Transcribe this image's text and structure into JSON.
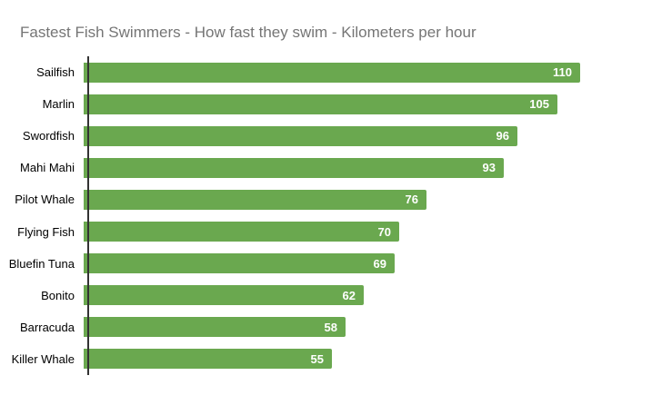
{
  "chart_data": {
    "type": "bar",
    "orientation": "horizontal",
    "title": "Fastest Fish Swimmers - How fast they swim - Kilometers per hour",
    "categories": [
      "Sailfish",
      "Marlin",
      "Swordfish",
      "Mahi Mahi",
      "Pilot Whale",
      "Flying Fish",
      "Bluefin Tuna",
      "Bonito",
      "Barracuda",
      "Killer Whale"
    ],
    "values": [
      110,
      105,
      96,
      93,
      76,
      70,
      69,
      62,
      58,
      55
    ],
    "value_labels_shown": true,
    "xlabel": "",
    "ylabel": "",
    "legend": "none",
    "grid": false,
    "axis_tick_labels_shown": false,
    "colors": {
      "bar": "#6aa84f",
      "value_label": "#ffffff",
      "category_label": "#000000",
      "title": "#757575",
      "axis_line": "#333333",
      "background": "#ffffff"
    }
  }
}
